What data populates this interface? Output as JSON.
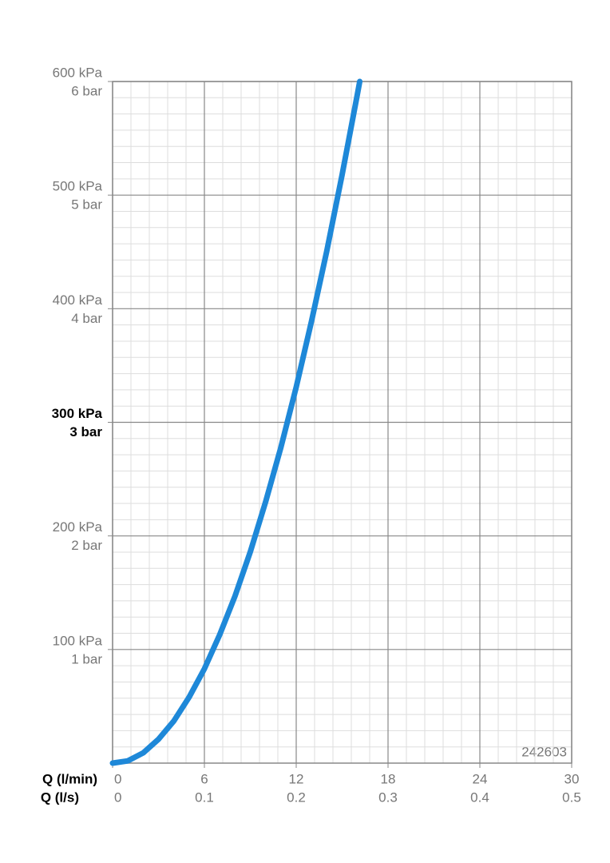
{
  "chart_data": {
    "type": "line",
    "xlabel": "Q (l/min)",
    "x2label": "Q (l/s)",
    "x": [
      0,
      1,
      2,
      3,
      4,
      5,
      6,
      7,
      8,
      9,
      10,
      11,
      12,
      13,
      14,
      15,
      16,
      16.15
    ],
    "series": [
      {
        "color": "#1e88d8",
        "values": [
          0,
          2,
          9,
          21,
          37,
          58,
          83,
          113,
          147,
          186,
          230,
          278,
          331,
          389,
          451,
          518,
          589,
          600
        ]
      }
    ],
    "xlim": [
      0,
      30
    ],
    "xticks": [
      0,
      6,
      12,
      18,
      24,
      30
    ],
    "x2lim": [
      0,
      0.5
    ],
    "x2ticks": [
      0,
      0.1,
      0.2,
      0.3,
      0.4,
      0.5
    ],
    "ylim": [
      0,
      600
    ],
    "yticks": [
      {
        "value": 100,
        "label": "100 kPa"
      },
      {
        "value": 200,
        "label": "200 kPa"
      },
      {
        "value": 300,
        "label": "300 kPa"
      },
      {
        "value": 400,
        "label": "400 kPa"
      },
      {
        "value": 500,
        "label": "500 kPa"
      },
      {
        "value": 600,
        "label": "600 kPa"
      }
    ],
    "y2lim": [
      0,
      6
    ],
    "y2ticks": [
      {
        "value": 1,
        "label": "1 bar"
      },
      {
        "value": 2,
        "label": "2 bar"
      },
      {
        "value": 3,
        "label": "3 bar"
      },
      {
        "value": 4,
        "label": "4 bar"
      },
      {
        "value": 5,
        "label": "5 bar"
      },
      {
        "value": 6,
        "label": "6 bar"
      }
    ],
    "bold_ytick": 300,
    "grid": true,
    "minor_grid": true,
    "annotation": "242603"
  }
}
